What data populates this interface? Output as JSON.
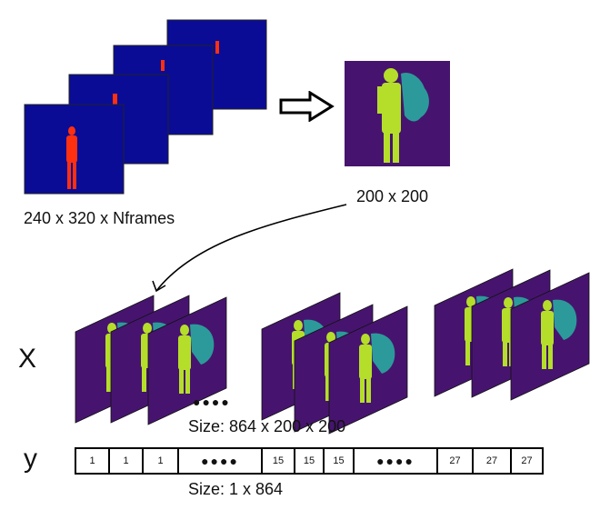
{
  "labels": {
    "input_size": "240 x 320 x Nframes",
    "frame_size": "200 x 200",
    "x": "X",
    "y": "y",
    "x_size": "Size: 864 x 200 x 200",
    "y_size": "Size: 1 x 864",
    "ellipsis": "●●●●"
  },
  "y_sequence": [
    "1",
    "1",
    "1",
    "●●●●",
    "15",
    "15",
    "15",
    "●●●●",
    "27",
    "27",
    "27"
  ],
  "colors": {
    "thermal_bg": "#0a0c96",
    "thermal_person": "#ff3010",
    "viridis_bg": "#46146e",
    "viridis_fg": "#b5de2b",
    "viridis_mid": "#2c9a9a"
  }
}
